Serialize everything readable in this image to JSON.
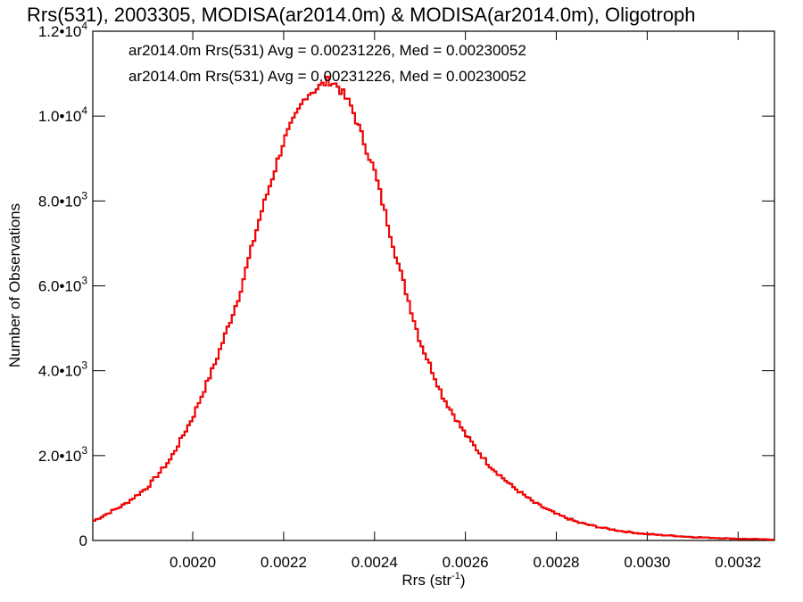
{
  "chart_data": {
    "type": "histogram",
    "title": "Rrs(531), 2003305, MODISA(ar2014.0m) & MODISA(ar2014.0m), Oligotroph",
    "xlabel": "Rrs (str",
    "xlabel_sup": "-1",
    "xlabel_end": ")",
    "ylabel": "Number of Observations",
    "xlim": [
      0.00178,
      0.00328
    ],
    "ylim": [
      0,
      12000
    ],
    "x_ticks": [
      {
        "value": 0.002,
        "label": "0.0020"
      },
      {
        "value": 0.0022,
        "label": "0.0022"
      },
      {
        "value": 0.0024,
        "label": "0.0024"
      },
      {
        "value": 0.0026,
        "label": "0.0026"
      },
      {
        "value": 0.0028,
        "label": "0.0028"
      },
      {
        "value": 0.003,
        "label": "0.0030"
      },
      {
        "value": 0.0032,
        "label": "0.0032"
      }
    ],
    "y_ticks": [
      {
        "value": 0,
        "base": "0",
        "exp": ""
      },
      {
        "value": 2000,
        "base": "2.0•10",
        "exp": "3"
      },
      {
        "value": 4000,
        "base": "4.0•10",
        "exp": "3"
      },
      {
        "value": 6000,
        "base": "6.0•10",
        "exp": "3"
      },
      {
        "value": 8000,
        "base": "8.0•10",
        "exp": "3"
      },
      {
        "value": 10000,
        "base": "1.0•10",
        "exp": "4"
      },
      {
        "value": 12000,
        "base": "1.2•10",
        "exp": "4"
      }
    ],
    "grid": false,
    "series": [
      {
        "name": "ar2014.0m Rrs(531) Avg = 0.00231226, Med = 0.00230052",
        "color": "#000000",
        "x": [
          0.00178,
          0.00185,
          0.0019,
          0.00195,
          0.002,
          0.00205,
          0.0021,
          0.00215,
          0.0022,
          0.00225,
          0.00228,
          0.0023,
          0.00232,
          0.00235,
          0.0024,
          0.00245,
          0.0025,
          0.00255,
          0.0026,
          0.00265,
          0.0027,
          0.00275,
          0.0028,
          0.00285,
          0.0029,
          0.00295,
          0.003,
          0.0031,
          0.0032,
          0.00328
        ],
        "y": [
          450,
          850,
          1250,
          1900,
          2900,
          4200,
          5700,
          7700,
          9400,
          10500,
          10700,
          10850,
          10700,
          10200,
          8700,
          6600,
          4700,
          3400,
          2500,
          1800,
          1300,
          900,
          620,
          420,
          300,
          210,
          150,
          80,
          40,
          20
        ]
      },
      {
        "name": "ar2014.0m Rrs(531) Avg = 0.00231226, Med = 0.00230052",
        "color": "#ff0000",
        "x": [
          0.00178,
          0.00185,
          0.0019,
          0.00195,
          0.002,
          0.00205,
          0.0021,
          0.00215,
          0.0022,
          0.00225,
          0.00228,
          0.0023,
          0.00232,
          0.00235,
          0.0024,
          0.00245,
          0.0025,
          0.00255,
          0.0026,
          0.00265,
          0.0027,
          0.00275,
          0.0028,
          0.00285,
          0.0029,
          0.00295,
          0.003,
          0.0031,
          0.0032,
          0.00328
        ],
        "y": [
          450,
          850,
          1250,
          1900,
          2900,
          4200,
          5700,
          7700,
          9400,
          10500,
          10700,
          10850,
          10700,
          10200,
          8700,
          6600,
          4700,
          3400,
          2500,
          1800,
          1300,
          900,
          620,
          420,
          300,
          210,
          150,
          80,
          40,
          20
        ]
      }
    ]
  }
}
